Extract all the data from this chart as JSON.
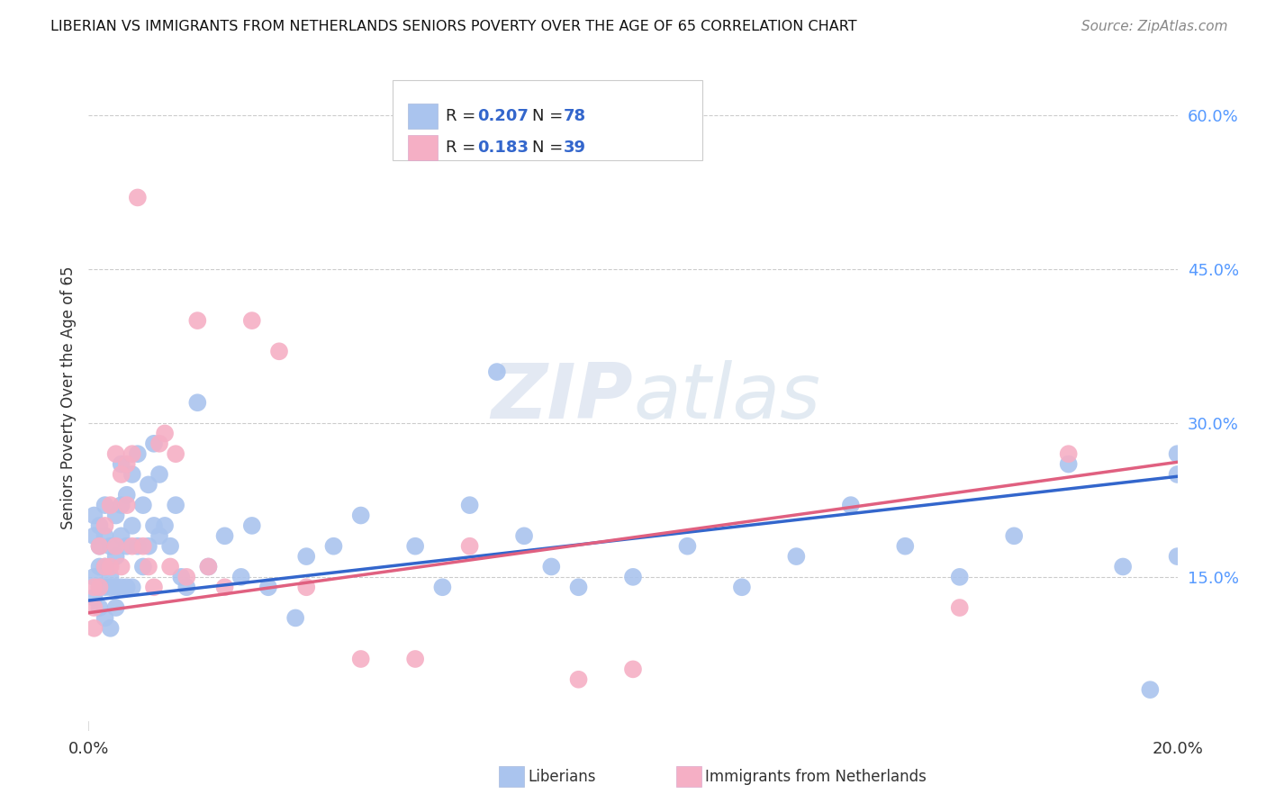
{
  "title": "LIBERIAN VS IMMIGRANTS FROM NETHERLANDS SENIORS POVERTY OVER THE AGE OF 65 CORRELATION CHART",
  "source": "Source: ZipAtlas.com",
  "ylabel": "Seniors Poverty Over the Age of 65",
  "watermark": "ZIPatlas",
  "series1_label": "Liberians",
  "series1_R": "0.207",
  "series1_N": "78",
  "series1_color": "#aac4ee",
  "series1_line_color": "#3366cc",
  "series2_label": "Immigrants from Netherlands",
  "series2_R": "0.183",
  "series2_N": "39",
  "series2_color": "#f5afc5",
  "series2_line_color": "#e06080",
  "right_yticks": [
    "60.0%",
    "45.0%",
    "30.0%",
    "15.0%"
  ],
  "right_ytick_vals": [
    0.6,
    0.45,
    0.3,
    0.15
  ],
  "xlim": [
    0.0,
    0.2
  ],
  "ylim": [
    0.0,
    0.65
  ],
  "series1_x": [
    0.001,
    0.001,
    0.001,
    0.001,
    0.002,
    0.002,
    0.002,
    0.002,
    0.002,
    0.003,
    0.003,
    0.003,
    0.003,
    0.003,
    0.004,
    0.004,
    0.004,
    0.004,
    0.005,
    0.005,
    0.005,
    0.005,
    0.006,
    0.006,
    0.006,
    0.006,
    0.007,
    0.007,
    0.007,
    0.008,
    0.008,
    0.008,
    0.009,
    0.009,
    0.01,
    0.01,
    0.011,
    0.011,
    0.012,
    0.012,
    0.013,
    0.013,
    0.014,
    0.015,
    0.016,
    0.017,
    0.018,
    0.02,
    0.022,
    0.025,
    0.028,
    0.03,
    0.033,
    0.038,
    0.04,
    0.045,
    0.05,
    0.06,
    0.065,
    0.07,
    0.075,
    0.08,
    0.085,
    0.09,
    0.1,
    0.11,
    0.12,
    0.13,
    0.14,
    0.15,
    0.16,
    0.17,
    0.18,
    0.19,
    0.195,
    0.2,
    0.2,
    0.2
  ],
  "series1_y": [
    0.21,
    0.19,
    0.15,
    0.13,
    0.2,
    0.18,
    0.16,
    0.14,
    0.12,
    0.22,
    0.19,
    0.16,
    0.14,
    0.11,
    0.18,
    0.15,
    0.14,
    0.1,
    0.21,
    0.17,
    0.14,
    0.12,
    0.26,
    0.22,
    0.19,
    0.14,
    0.23,
    0.18,
    0.14,
    0.25,
    0.2,
    0.14,
    0.27,
    0.18,
    0.22,
    0.16,
    0.24,
    0.18,
    0.28,
    0.2,
    0.25,
    0.19,
    0.2,
    0.18,
    0.22,
    0.15,
    0.14,
    0.32,
    0.16,
    0.19,
    0.15,
    0.2,
    0.14,
    0.11,
    0.17,
    0.18,
    0.21,
    0.18,
    0.14,
    0.22,
    0.35,
    0.19,
    0.16,
    0.14,
    0.15,
    0.18,
    0.14,
    0.17,
    0.22,
    0.18,
    0.15,
    0.19,
    0.26,
    0.16,
    0.04,
    0.17,
    0.25,
    0.27
  ],
  "series2_x": [
    0.001,
    0.001,
    0.001,
    0.002,
    0.002,
    0.003,
    0.003,
    0.004,
    0.004,
    0.005,
    0.005,
    0.006,
    0.006,
    0.007,
    0.007,
    0.008,
    0.008,
    0.009,
    0.01,
    0.011,
    0.012,
    0.013,
    0.014,
    0.015,
    0.016,
    0.018,
    0.02,
    0.022,
    0.025,
    0.03,
    0.035,
    0.04,
    0.05,
    0.06,
    0.07,
    0.09,
    0.1,
    0.16,
    0.18
  ],
  "series2_y": [
    0.14,
    0.12,
    0.1,
    0.18,
    0.14,
    0.2,
    0.16,
    0.22,
    0.16,
    0.27,
    0.18,
    0.25,
    0.16,
    0.26,
    0.22,
    0.18,
    0.27,
    0.52,
    0.18,
    0.16,
    0.14,
    0.28,
    0.29,
    0.16,
    0.27,
    0.15,
    0.4,
    0.16,
    0.14,
    0.4,
    0.37,
    0.14,
    0.07,
    0.07,
    0.18,
    0.05,
    0.06,
    0.12,
    0.27
  ],
  "background_color": "#ffffff",
  "grid_color": "#cccccc",
  "blue_label_color": "#3366cc",
  "dark_text_color": "#333333",
  "tick_color": "#5599ff"
}
